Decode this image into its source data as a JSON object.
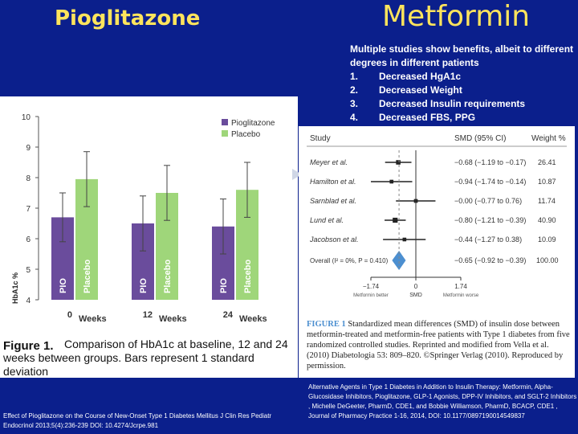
{
  "slide": {
    "title_left": "Pioglitazone",
    "title_right": "Metformin",
    "benefits_intro": "Multiple studies show benefits, albeit to different degrees in different patients",
    "benefits": [
      {
        "num": "1.",
        "text": "Decreased HgA1c"
      },
      {
        "num": "2.",
        "text": "Decreased Weight"
      },
      {
        "num": "3.",
        "text": "Decreased Insulin requirements"
      },
      {
        "num": "4.",
        "text": "Decreased FBS, PPG"
      }
    ],
    "citation_left": "Effect of Pioglitazone on the Course of New-Onset Type 1 Diabetes Mellitus J Clin Res Pediatr Endocrinol 2013;5(4):236-239 DOI: 10.4274/Jcrpe.981",
    "citation_right": "Alternative Agents in Type 1 Diabetes in Addition to Insulin Therapy: Metformin, Alpha-Glucosidase Inhibitors, Pioglitazone, GLP-1 Agonists, DPP-IV Inhibitors, and SGLT-2 Inhibitors , Michelle DeGeeter, PharmD, CDE1, and Bobbie Williamson, PharmD, BCACP, CDE1 , Journal of Pharmacy Practice 1-16, 2014, DOI: 10.1177/0897190014549837",
    "colors": {
      "background": "#0b1f8c",
      "title": "#ffe45c",
      "pio": "#6a4c9c",
      "placebo": "#9fd67a",
      "forest": "#4c8fd0"
    }
  },
  "chart_data": [
    {
      "type": "bar",
      "ylabel": "HbA1c %",
      "ylim": [
        4,
        10
      ],
      "yticks": [
        4,
        5,
        6,
        7,
        8,
        9,
        10
      ],
      "categories": [
        "0",
        "12",
        "24"
      ],
      "category_suffix": "Weeks",
      "bar_labels": [
        "PIO",
        "Placebo"
      ],
      "series": [
        {
          "name": "Pioglitazone",
          "values": [
            6.7,
            6.5,
            6.4
          ],
          "error": [
            0.8,
            0.9,
            0.9
          ]
        },
        {
          "name": "Placebo",
          "values": [
            7.95,
            7.5,
            7.6
          ],
          "error": [
            0.9,
            0.9,
            0.9
          ]
        }
      ],
      "legend_position": "top-right",
      "caption_label": "Figure 1.",
      "caption_text": "Comparison of HbA1c at baseline, 12 and 24 weeks between groups. Bars represent 1 standard deviation"
    },
    {
      "type": "forest",
      "header_study": "Study",
      "header_smd": "SMD (95% CI)",
      "header_weight": "Weight %",
      "studies": [
        {
          "name": "Meyer et al.",
          "smd": -0.68,
          "ci": [
            -1.19,
            -0.17
          ],
          "smd_text": "−0.68 (−1.19 to −0.17)",
          "weight": "26.41"
        },
        {
          "name": "Hamilton et al.",
          "smd": -0.94,
          "ci": [
            -1.74,
            -0.14
          ],
          "smd_text": "−0.94 (−1.74 to −0.14)",
          "weight": "10.87"
        },
        {
          "name": "Sarnblad et al.",
          "smd": -0.0,
          "ci": [
            -0.77,
            0.76
          ],
          "smd_text": "−0.00 (−0.77 to 0.76)",
          "weight": "11.74"
        },
        {
          "name": "Lund et al.",
          "smd": -0.8,
          "ci": [
            -1.21,
            -0.39
          ],
          "smd_text": "−0.80 (−1.21 to −0.39)",
          "weight": "40.90"
        },
        {
          "name": "Jacobson et al.",
          "smd": -0.44,
          "ci": [
            -1.27,
            0.38
          ],
          "smd_text": "−0.44 (−1.27 to 0.38)",
          "weight": "10.09"
        }
      ],
      "overall": {
        "name": "Overall (I² = 0%, P = 0.410)",
        "smd": -0.65,
        "ci": [
          -0.92,
          -0.39
        ],
        "smd_text": "−0.65 (−0.92 to −0.39)",
        "weight": "100.00"
      },
      "xlim": [
        -1.74,
        1.74
      ],
      "xticks": [
        "−1.74",
        "0",
        "1.74"
      ],
      "xlabel": "SMD",
      "left_label": "Metformin better",
      "right_label": "Metformin worse",
      "caption_label": "FIGURE 1",
      "caption_text": "Standardized mean differences (SMD) of insulin dose between metformin-treated and metformin-free patients with Type 1 diabetes from five randomized controlled studies. Reprinted and modified from Vella et al. (2010) Diabetologia 53: 809–820. ©Springer Verlag (2010). Reproduced by permission."
    }
  ]
}
